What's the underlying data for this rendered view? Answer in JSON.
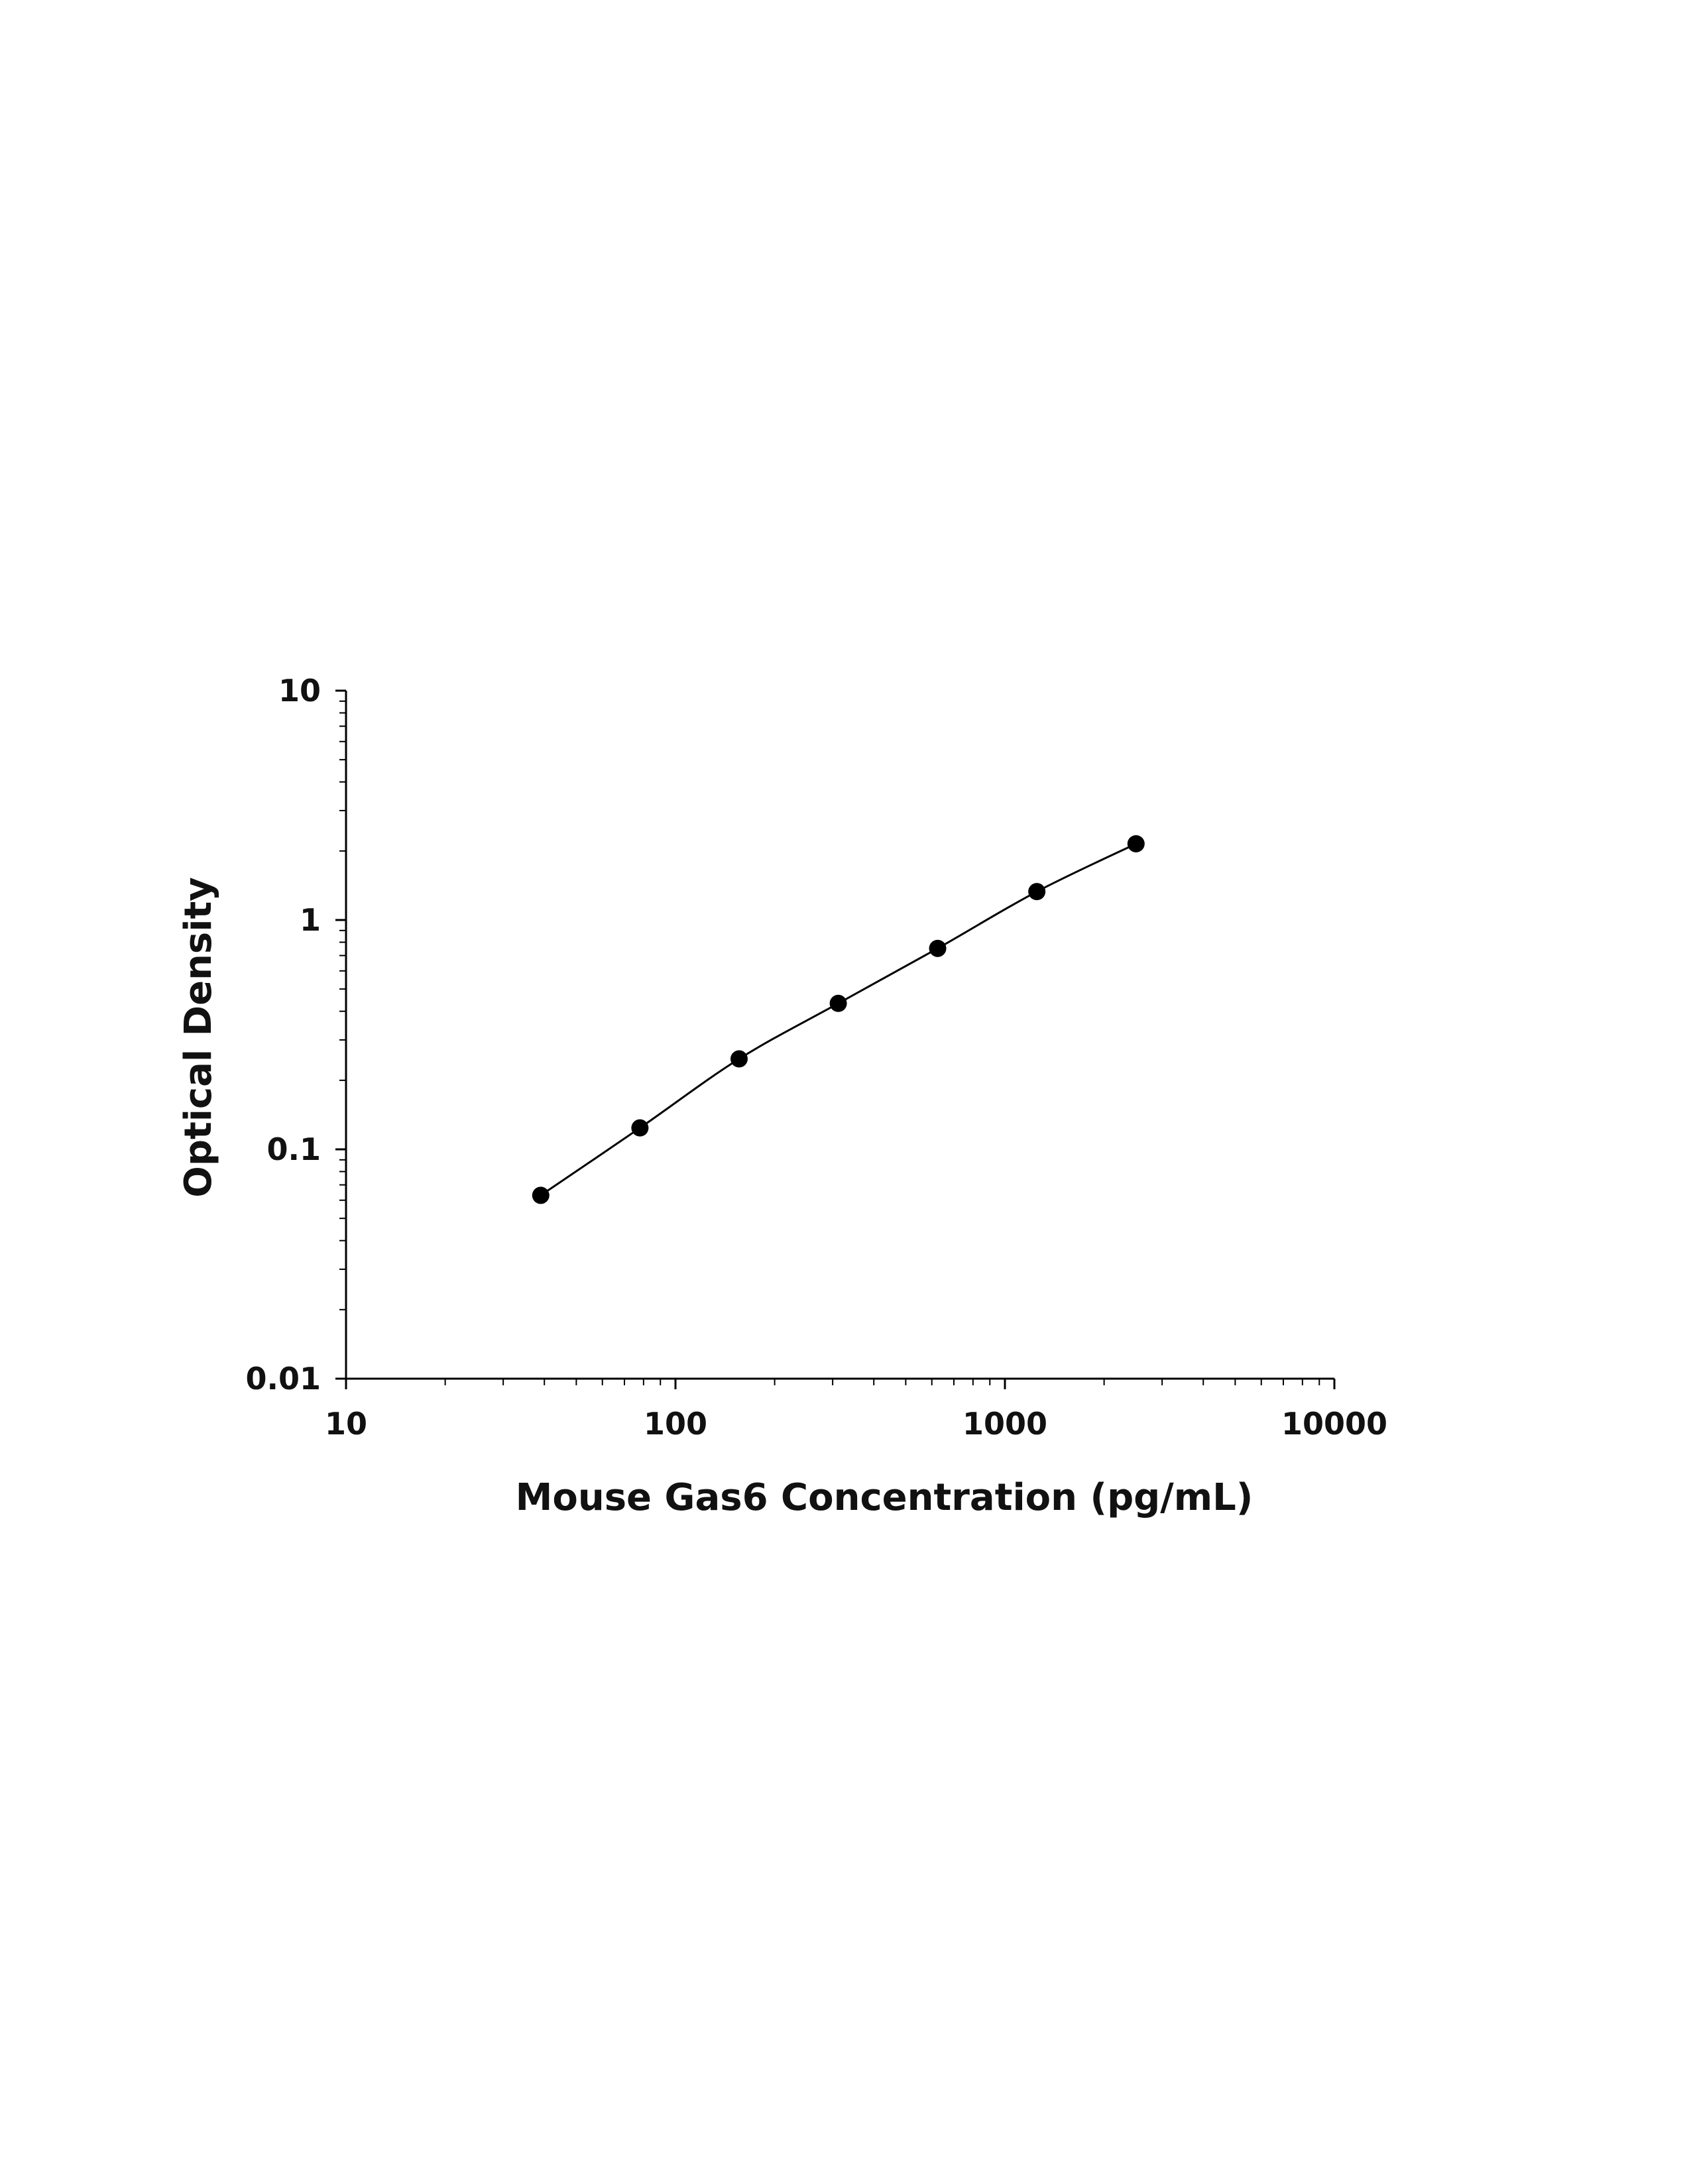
{
  "chart_data": {
    "type": "scatter",
    "xlabel": "Mouse Gas6 Concentration (pg/mL)",
    "ylabel": "Optical Density",
    "xscale": "log",
    "yscale": "log",
    "xlim": [
      10,
      10000
    ],
    "ylim": [
      0.01,
      10
    ],
    "xticks": [
      {
        "value": 10,
        "label": "10"
      },
      {
        "value": 100,
        "label": "100"
      },
      {
        "value": 1000,
        "label": "1000"
      },
      {
        "value": 10000,
        "label": "10000"
      }
    ],
    "yticks": [
      {
        "value": 0.01,
        "label": "0.01"
      },
      {
        "value": 0.1,
        "label": "0.1"
      },
      {
        "value": 1,
        "label": "1"
      },
      {
        "value": 10,
        "label": "10"
      }
    ],
    "grid": false,
    "legend": "none",
    "series": [
      {
        "x": [
          39,
          78,
          156,
          312,
          625,
          1250,
          2500
        ],
        "y": [
          0.063,
          0.124,
          0.248,
          0.433,
          0.752,
          1.33,
          2.15
        ],
        "marker": "circle",
        "fit_line": true,
        "color": "#000000"
      }
    ]
  }
}
